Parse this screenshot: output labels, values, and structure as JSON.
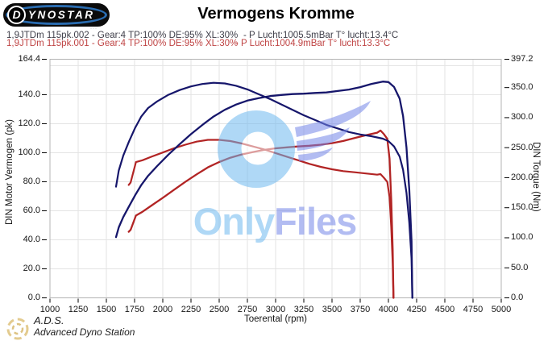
{
  "header": {
    "logo": {
      "letter": "D",
      "rest": "YNOSTAR",
      "sub": "···"
    },
    "runs": [
      {
        "label": "1,9JTDm 115pk.002 - Gear:4 TP:100% DE:95% XL:30%",
        "ambient": "- P Lucht:1005.5mBar T° lucht:13.4°C",
        "color": "#3f3f4a"
      },
      {
        "label": "1,9JTDm 115pk.001 - Gear:4 TP:100% DE:95% XL:30%",
        "ambient": "- P Lucht:1004.9mBar T° lucht:13.3°C",
        "color": "#bf4343"
      }
    ]
  },
  "watermark": {
    "text_only": "Only",
    "text_files": "Files"
  },
  "footer": {
    "abbr": "A.D.S.",
    "name": "Advanced Dyno Station"
  },
  "chart_data": {
    "type": "line",
    "title": "Vermogens Kromme",
    "xlabel": "Toerental (rpm)",
    "ylabel_left": "DIN Motor Vermogen (pk)",
    "ylabel_right": "DIN Torque (Nm)",
    "xlim": [
      1000,
      5000
    ],
    "ylim_left": [
      0,
      164.4
    ],
    "ylim_right": [
      0,
      397.2
    ],
    "grid": true,
    "x_ticks": [
      1000,
      1250,
      1500,
      1750,
      2000,
      2250,
      2500,
      2750,
      3000,
      3250,
      3500,
      3750,
      4000,
      4250,
      4500,
      4750,
      5000
    ],
    "y_left_tick_labels": [
      "164.4",
      "140.0",
      "120.0",
      "100.0",
      "80.0",
      "60.0",
      "40.0",
      "20.0",
      "0.0"
    ],
    "y_left_tick_values": [
      164.4,
      140,
      120,
      100,
      80,
      60,
      40,
      20,
      0
    ],
    "y_right_tick_labels": [
      "397.2",
      "350.0",
      "300.0",
      "250.0",
      "200.0",
      "150.0",
      "100.0",
      "50.0",
      "0.0"
    ],
    "y_right_tick_values": [
      397.2,
      350,
      300,
      250,
      200,
      150,
      100,
      50,
      0
    ],
    "y_gridlines_pk": [
      20,
      40,
      60,
      80,
      100,
      120,
      140,
      160
    ],
    "series": [
      {
        "name": "1,9JTDm 115pk.002 vermogen",
        "unit": "pk",
        "axis": "left",
        "color": "#16166b",
        "points": [
          [
            1586,
            41.8
          ],
          [
            1610,
            48.6
          ],
          [
            1650,
            55.7
          ],
          [
            1700,
            62.9
          ],
          [
            1755,
            70.7
          ],
          [
            1810,
            77.8
          ],
          [
            1870,
            84.1
          ],
          [
            1950,
            90.8
          ],
          [
            2050,
            98.7
          ],
          [
            2150,
            105.9
          ],
          [
            2250,
            112.8
          ],
          [
            2350,
            119.1
          ],
          [
            2450,
            124.9
          ],
          [
            2550,
            129.6
          ],
          [
            2650,
            133.2
          ],
          [
            2750,
            135.9
          ],
          [
            2850,
            137.6
          ],
          [
            2950,
            139.0
          ],
          [
            3050,
            139.8
          ],
          [
            3150,
            140.4
          ],
          [
            3250,
            140.7
          ],
          [
            3350,
            141.2
          ],
          [
            3450,
            141.5
          ],
          [
            3550,
            142.5
          ],
          [
            3650,
            143.5
          ],
          [
            3750,
            145.2
          ],
          [
            3850,
            147.4
          ],
          [
            3950,
            149.0
          ],
          [
            4000,
            148.7
          ],
          [
            4050,
            145.3
          ],
          [
            4100,
            137.2
          ],
          [
            4130,
            125.2
          ],
          [
            4160,
            103.7
          ],
          [
            4185,
            74.5
          ],
          [
            4205,
            38.9
          ],
          [
            4212,
            0
          ]
        ]
      },
      {
        "name": "1,9JTDm 115pk.002 koppel",
        "unit": "Nm",
        "axis": "right",
        "color": "#16166b",
        "points": [
          [
            1586,
            185
          ],
          [
            1610,
            212
          ],
          [
            1650,
            237
          ],
          [
            1700,
            260
          ],
          [
            1755,
            283
          ],
          [
            1810,
            302
          ],
          [
            1870,
            316
          ],
          [
            1950,
            327
          ],
          [
            2050,
            338
          ],
          [
            2150,
            346
          ],
          [
            2250,
            352
          ],
          [
            2350,
            356
          ],
          [
            2450,
            358
          ],
          [
            2550,
            357
          ],
          [
            2650,
            353
          ],
          [
            2750,
            347
          ],
          [
            2850,
            339
          ],
          [
            2950,
            331
          ],
          [
            3050,
            322
          ],
          [
            3150,
            313
          ],
          [
            3250,
            304
          ],
          [
            3350,
            296
          ],
          [
            3450,
            288
          ],
          [
            3550,
            282
          ],
          [
            3650,
            276
          ],
          [
            3750,
            272
          ],
          [
            3850,
            269
          ],
          [
            3950,
            265
          ],
          [
            4000,
            261
          ],
          [
            4050,
            252
          ],
          [
            4100,
            235
          ],
          [
            4130,
            213
          ],
          [
            4160,
            175
          ],
          [
            4185,
            125
          ],
          [
            4205,
            65
          ],
          [
            4212,
            0
          ]
        ]
      },
      {
        "name": "1,9JTDm 115pk.001 vermogen",
        "unit": "pk",
        "axis": "left",
        "color": "#b22424",
        "points": [
          [
            1698,
            45.5
          ],
          [
            1715,
            46.9
          ],
          [
            1762,
            56.7
          ],
          [
            1820,
            59.3
          ],
          [
            1900,
            63.6
          ],
          [
            2000,
            68.9
          ],
          [
            2100,
            74.5
          ],
          [
            2200,
            79.9
          ],
          [
            2300,
            85.1
          ],
          [
            2400,
            89.9
          ],
          [
            2500,
            93.6
          ],
          [
            2600,
            96.6
          ],
          [
            2700,
            98.8
          ],
          [
            2800,
            100.5
          ],
          [
            2900,
            102.0
          ],
          [
            3000,
            103.0
          ],
          [
            3100,
            103.7
          ],
          [
            3200,
            104.3
          ],
          [
            3300,
            104.8
          ],
          [
            3400,
            105.5
          ],
          [
            3500,
            106.6
          ],
          [
            3600,
            108.1
          ],
          [
            3700,
            110.1
          ],
          [
            3800,
            112.0
          ],
          [
            3900,
            113.8
          ],
          [
            3930,
            115.3
          ],
          [
            3960,
            112.8
          ],
          [
            3990,
            109.6
          ],
          [
            4010,
            95.9
          ],
          [
            4025,
            67.6
          ],
          [
            4038,
            33.3
          ],
          [
            4045,
            0
          ]
        ]
      },
      {
        "name": "1,9JTDm 115pk.001 koppel",
        "unit": "Nm",
        "axis": "right",
        "color": "#b22424",
        "points": [
          [
            1698,
            188
          ],
          [
            1715,
            192
          ],
          [
            1762,
            226
          ],
          [
            1820,
            229
          ],
          [
            1900,
            235
          ],
          [
            2000,
            242
          ],
          [
            2100,
            249
          ],
          [
            2200,
            255
          ],
          [
            2300,
            260
          ],
          [
            2400,
            263
          ],
          [
            2500,
            263
          ],
          [
            2600,
            261
          ],
          [
            2700,
            257
          ],
          [
            2800,
            252
          ],
          [
            2900,
            247
          ],
          [
            3000,
            241
          ],
          [
            3100,
            235
          ],
          [
            3200,
            229
          ],
          [
            3300,
            223
          ],
          [
            3400,
            218
          ],
          [
            3500,
            214
          ],
          [
            3600,
            211
          ],
          [
            3700,
            209
          ],
          [
            3800,
            207
          ],
          [
            3900,
            205
          ],
          [
            3930,
            206
          ],
          [
            3960,
            200
          ],
          [
            3990,
            193
          ],
          [
            4010,
            168
          ],
          [
            4025,
            118
          ],
          [
            4038,
            58
          ],
          [
            4045,
            0
          ]
        ]
      }
    ]
  }
}
